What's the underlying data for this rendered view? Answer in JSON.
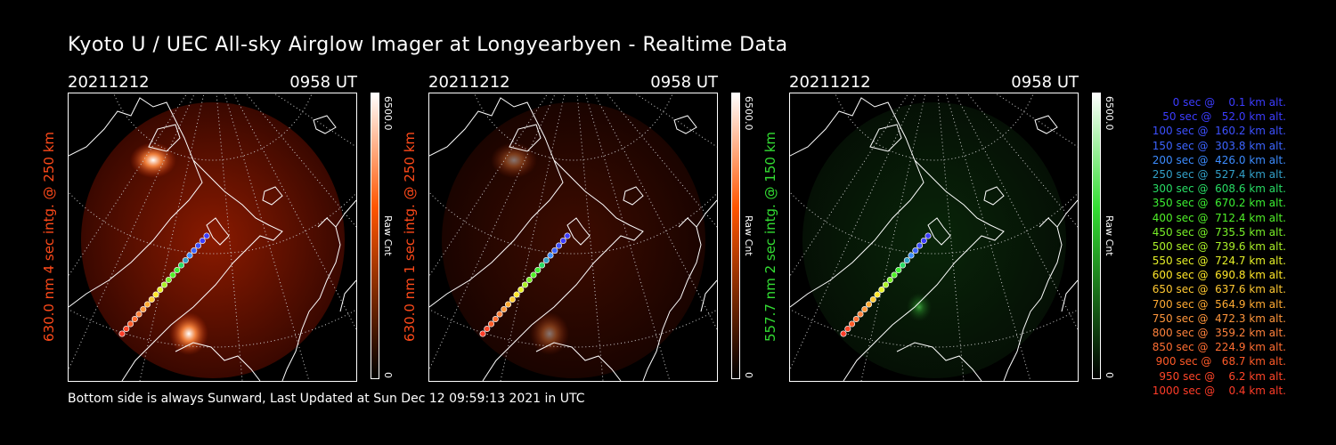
{
  "title": "Kyoto U / UEC All-sky Airglow Imager at Longyearbyen - Realtime Data",
  "panels": [
    {
      "date": "20211212",
      "time": "0958 UT",
      "ylabel": "630.0 nm  4 sec intg. @ 250 km",
      "ylabel_color": "#ff4a1a",
      "cbar_max": "6500.0",
      "cbar_unit": "Raw Cnt",
      "cbar_min": "0",
      "cbar_color": "#ff5500",
      "tint": "red",
      "intensity": 1.0
    },
    {
      "date": "20211212",
      "time": "0958 UT",
      "ylabel": "630.0 nm  1 sec intg. @ 250 km",
      "ylabel_color": "#ff4a1a",
      "cbar_max": "6500.0",
      "cbar_unit": "Raw Cnt",
      "cbar_min": "0",
      "cbar_color": "#ff5500",
      "tint": "red",
      "intensity": 0.45
    },
    {
      "date": "20211212",
      "time": "0958 UT",
      "ylabel": "557.7 nm  2 sec intg. @ 150 km",
      "ylabel_color": "#33dd33",
      "cbar_max": "6500.0",
      "cbar_unit": "Raw Cnt",
      "cbar_min": "0",
      "cbar_color": "#33dd33",
      "tint": "green",
      "intensity": 0.5
    }
  ],
  "legend": [
    {
      "text": "   0 sec @    0.1 km alt.",
      "color": "#3c3cff"
    },
    {
      "text": "  50 sec @   52.0 km alt.",
      "color": "#3c3cff"
    },
    {
      "text": " 100 sec @  160.2 km alt.",
      "color": "#3c50ff"
    },
    {
      "text": " 150 sec @  303.8 km alt.",
      "color": "#3c64ff"
    },
    {
      "text": " 200 sec @  426.0 km alt.",
      "color": "#3c8cff"
    },
    {
      "text": " 250 sec @  527.4 km alt.",
      "color": "#32a0c8"
    },
    {
      "text": " 300 sec @  608.6 km alt.",
      "color": "#28dc64"
    },
    {
      "text": " 350 sec @  670.2 km alt.",
      "color": "#3cf032"
    },
    {
      "text": " 400 sec @  712.4 km alt.",
      "color": "#50f028"
    },
    {
      "text": " 450 sec @  735.5 km alt.",
      "color": "#78f028"
    },
    {
      "text": " 500 sec @  739.6 km alt.",
      "color": "#aaf028"
    },
    {
      "text": " 550 sec @  724.7 km alt.",
      "color": "#e6f028"
    },
    {
      "text": " 600 sec @  690.8 km alt.",
      "color": "#ffe628"
    },
    {
      "text": " 650 sec @  637.6 km alt.",
      "color": "#ffc832"
    },
    {
      "text": " 700 sec @  564.9 km alt.",
      "color": "#ffaa32"
    },
    {
      "text": " 750 sec @  472.3 km alt.",
      "color": "#ff963c"
    },
    {
      "text": " 800 sec @  359.2 km alt.",
      "color": "#ff823c"
    },
    {
      "text": " 850 sec @  224.9 km alt.",
      "color": "#ff6e32"
    },
    {
      "text": " 900 sec @   68.7 km alt.",
      "color": "#ff5a28"
    },
    {
      "text": " 950 sec @    6.2 km alt.",
      "color": "#ff4628"
    },
    {
      "text": "1000 sec @    0.4 km alt.",
      "color": "#ff3c28"
    }
  ],
  "footer": "Bottom side is always Sunward, Last Updated at Sun Dec 12 09:59:13 2021 in UTC"
}
